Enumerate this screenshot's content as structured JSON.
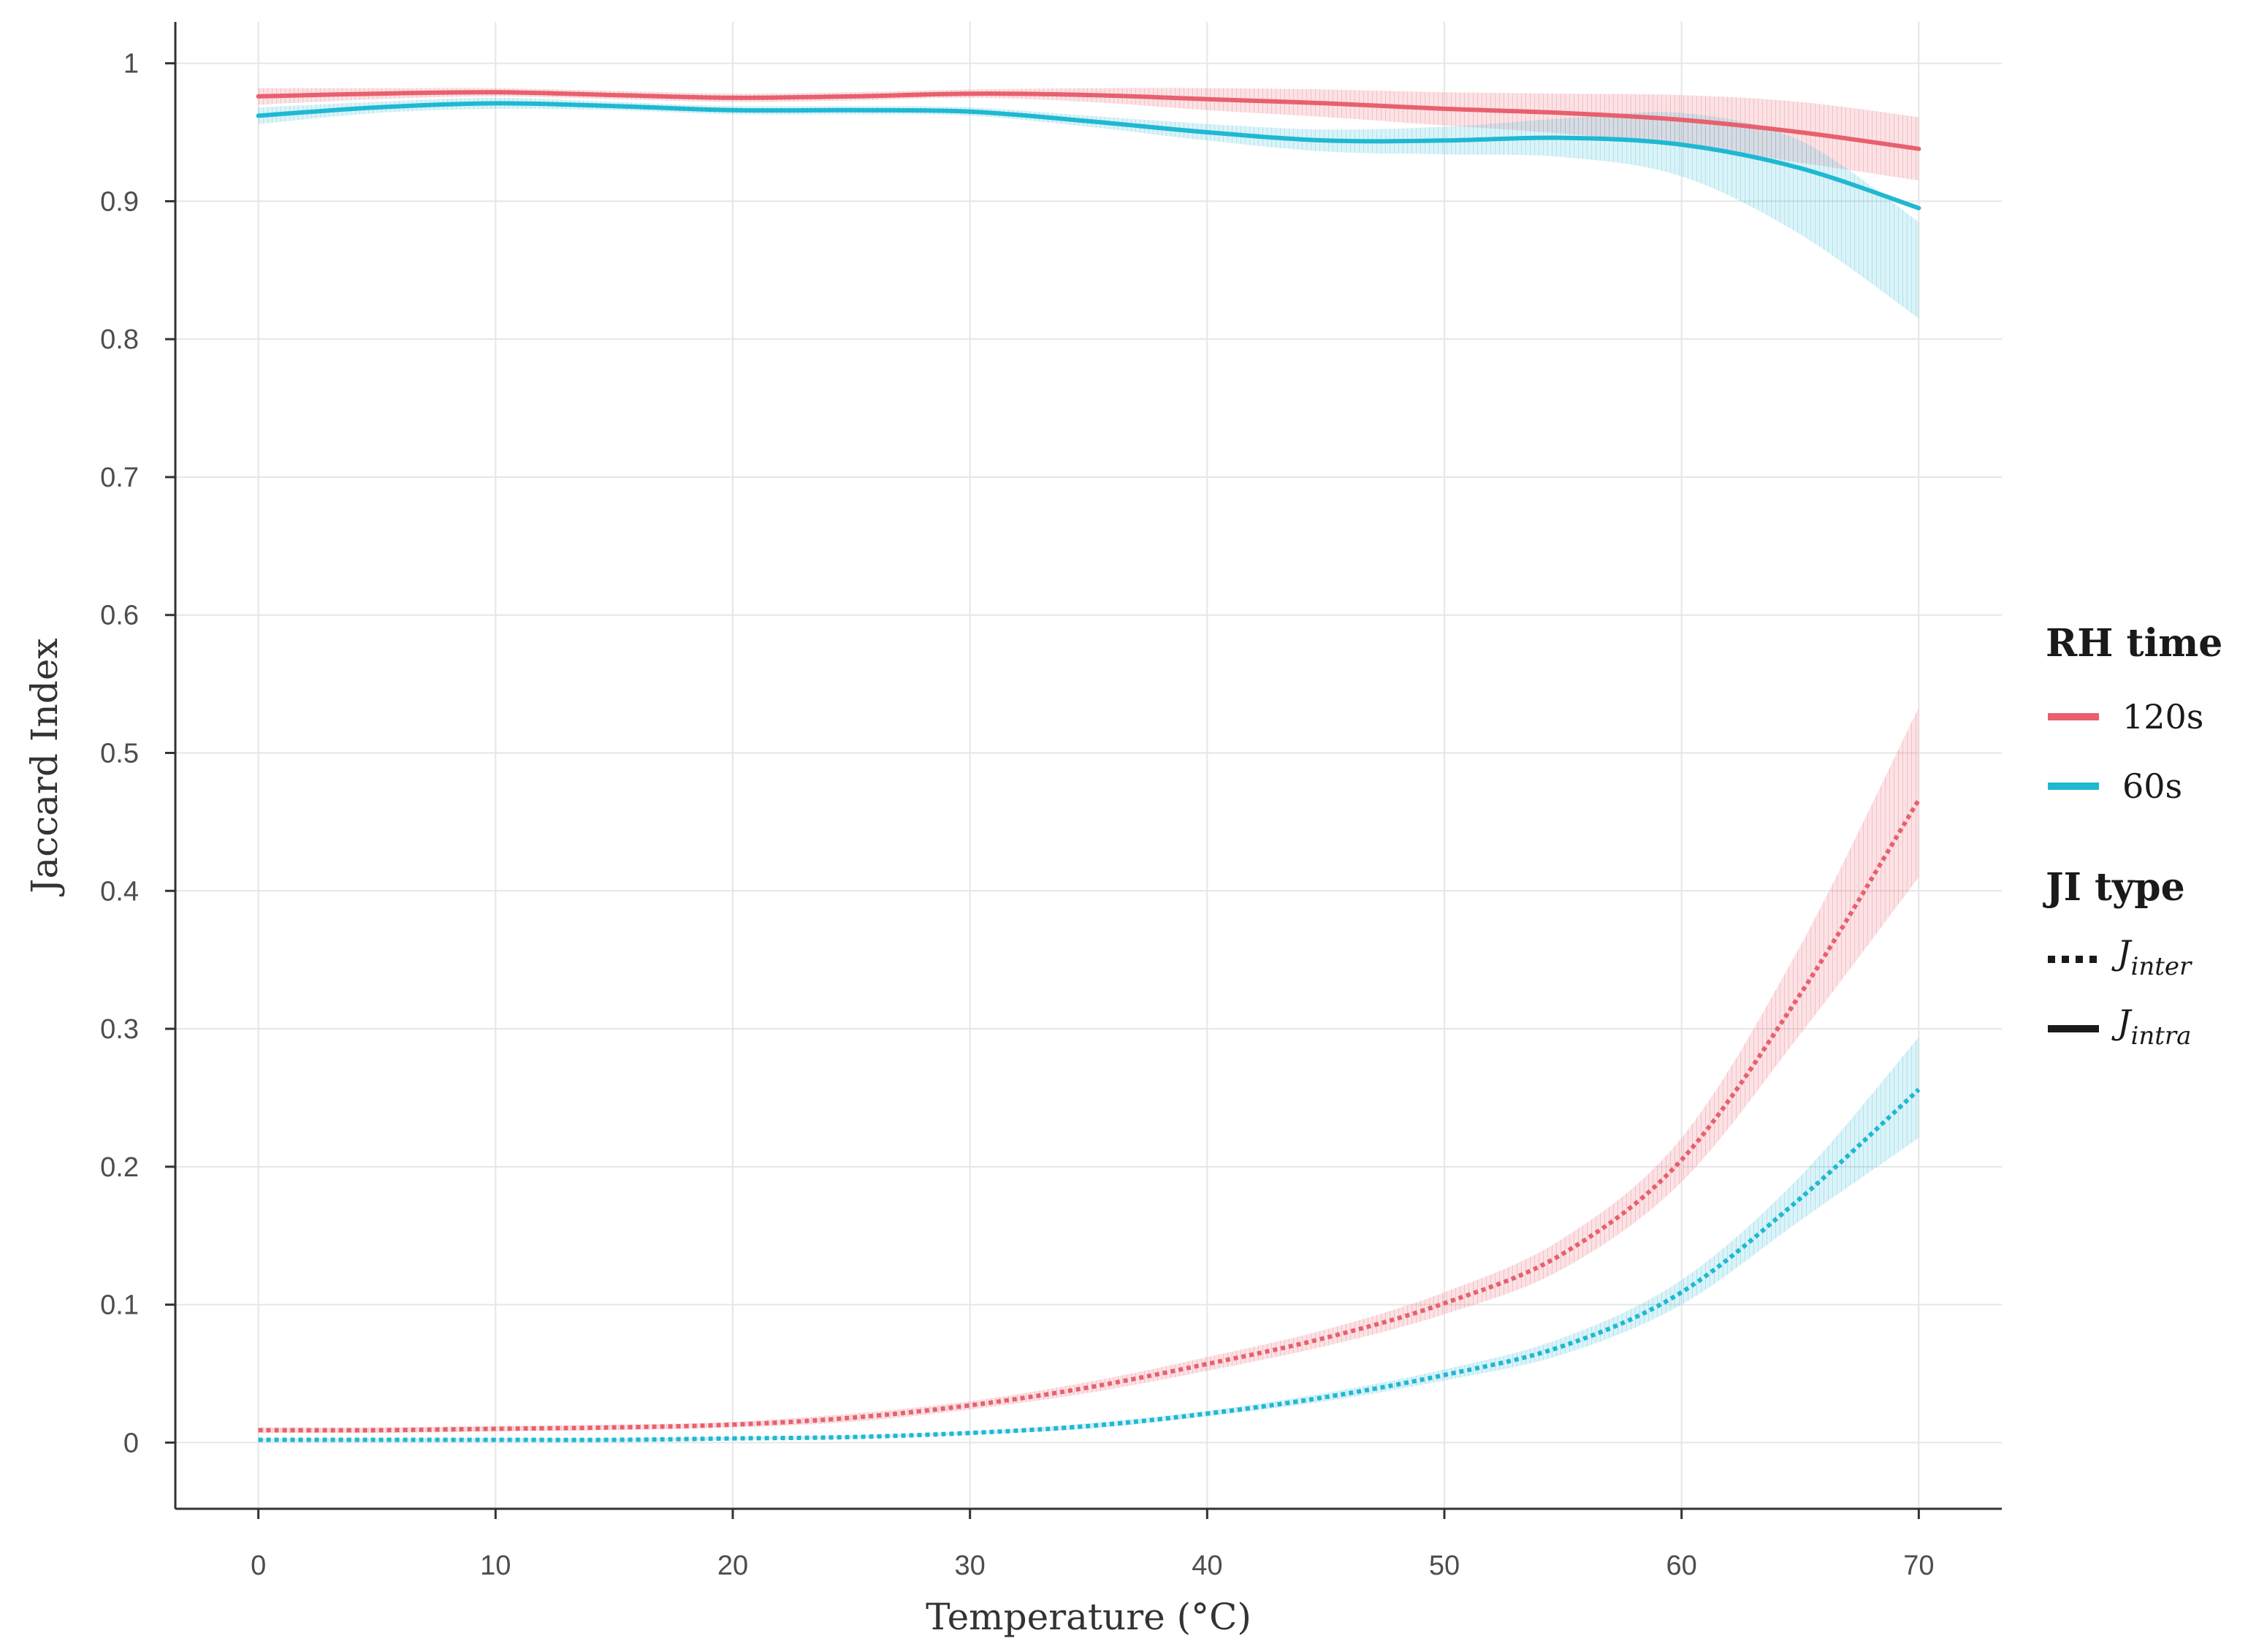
{
  "chart_data": {
    "type": "line",
    "xlabel": "Temperature (°C)",
    "ylabel": "Jaccard Index",
    "xlim": [
      -3.5,
      73.5
    ],
    "ylim": [
      -0.048,
      1.03
    ],
    "xticks": [
      0,
      10,
      20,
      30,
      40,
      50,
      60,
      70
    ],
    "xtick_labels": [
      "0",
      "10",
      "20",
      "30",
      "40",
      "50",
      "60",
      "70"
    ],
    "yticks": [
      0,
      0.1,
      0.2,
      0.3,
      0.4,
      0.5,
      0.6,
      0.7,
      0.8,
      0.9,
      1
    ],
    "ytick_labels": [
      "0",
      "0.1",
      "0.2",
      "0.3",
      "0.4",
      "0.5",
      "0.6",
      "0.7",
      "0.8",
      "0.9",
      "1"
    ],
    "grid": true,
    "legend_placement": "right",
    "colors": {
      "120s": "#e8606e",
      "60s": "#1fb8d2",
      "ji_type": "#1a1a1a"
    },
    "legend": {
      "rh_title": "RH time",
      "rh_items": [
        {
          "label": "120s",
          "color": "#e8606e"
        },
        {
          "label": "60s",
          "color": "#1fb8d2"
        }
      ],
      "ji_title": "JI type",
      "ji_items": [
        {
          "base": "J",
          "sub": "inter",
          "style": "dotted"
        },
        {
          "base": "J",
          "sub": "intra",
          "style": "solid"
        }
      ]
    },
    "series": [
      {
        "rh": "120s",
        "ji": "intra",
        "style": "solid",
        "color": "#e8606e",
        "x": [
          0,
          5,
          10,
          15,
          20,
          25,
          30,
          35,
          40,
          45,
          50,
          55,
          60,
          65,
          70
        ],
        "y": [
          0.976,
          0.978,
          0.979,
          0.977,
          0.975,
          0.976,
          0.978,
          0.977,
          0.974,
          0.971,
          0.967,
          0.964,
          0.959,
          0.95,
          0.938
        ],
        "lower": [
          0.97,
          0.974,
          0.976,
          0.974,
          0.972,
          0.973,
          0.975,
          0.972,
          0.966,
          0.961,
          0.955,
          0.949,
          0.941,
          0.928,
          0.915
        ],
        "upper": [
          0.982,
          0.982,
          0.982,
          0.98,
          0.978,
          0.979,
          0.981,
          0.982,
          0.982,
          0.981,
          0.979,
          0.978,
          0.977,
          0.972,
          0.961
        ]
      },
      {
        "rh": "60s",
        "ji": "intra",
        "style": "solid",
        "color": "#1fb8d2",
        "x": [
          0,
          5,
          10,
          15,
          20,
          25,
          30,
          35,
          40,
          45,
          50,
          55,
          60,
          65,
          70
        ],
        "y": [
          0.962,
          0.968,
          0.971,
          0.969,
          0.966,
          0.966,
          0.965,
          0.958,
          0.95,
          0.944,
          0.944,
          0.946,
          0.941,
          0.924,
          0.895
        ],
        "lower": [
          0.956,
          0.964,
          0.967,
          0.966,
          0.963,
          0.963,
          0.962,
          0.954,
          0.944,
          0.936,
          0.934,
          0.932,
          0.918,
          0.876,
          0.815
        ],
        "upper": [
          0.968,
          0.972,
          0.975,
          0.972,
          0.969,
          0.969,
          0.968,
          0.962,
          0.956,
          0.952,
          0.954,
          0.96,
          0.964,
          0.944,
          0.885
        ]
      },
      {
        "rh": "120s",
        "ji": "inter",
        "style": "dotted",
        "color": "#e8606e",
        "x": [
          0,
          5,
          10,
          15,
          20,
          25,
          30,
          35,
          40,
          45,
          50,
          55,
          60,
          65,
          70
        ],
        "y": [
          0.009,
          0.009,
          0.01,
          0.011,
          0.013,
          0.018,
          0.027,
          0.04,
          0.057,
          0.076,
          0.101,
          0.137,
          0.205,
          0.325,
          0.466
        ],
        "lower": [
          0.007,
          0.007,
          0.008,
          0.009,
          0.011,
          0.015,
          0.024,
          0.036,
          0.052,
          0.07,
          0.093,
          0.126,
          0.189,
          0.296,
          0.41
        ],
        "upper": [
          0.011,
          0.011,
          0.012,
          0.013,
          0.015,
          0.021,
          0.03,
          0.044,
          0.062,
          0.082,
          0.109,
          0.148,
          0.221,
          0.36,
          0.533
        ]
      },
      {
        "rh": "60s",
        "ji": "inter",
        "style": "dotted",
        "color": "#1fb8d2",
        "x": [
          0,
          5,
          10,
          15,
          20,
          25,
          30,
          35,
          40,
          45,
          50,
          55,
          60,
          65,
          70
        ],
        "y": [
          0.002,
          0.002,
          0.002,
          0.002,
          0.003,
          0.004,
          0.007,
          0.012,
          0.021,
          0.033,
          0.049,
          0.07,
          0.109,
          0.177,
          0.256
        ],
        "lower": [
          0.001,
          0.001,
          0.001,
          0.001,
          0.002,
          0.003,
          0.006,
          0.01,
          0.019,
          0.03,
          0.045,
          0.064,
          0.1,
          0.161,
          0.221
        ],
        "upper": [
          0.003,
          0.003,
          0.003,
          0.003,
          0.004,
          0.005,
          0.008,
          0.014,
          0.023,
          0.036,
          0.053,
          0.076,
          0.118,
          0.193,
          0.294
        ]
      }
    ]
  }
}
